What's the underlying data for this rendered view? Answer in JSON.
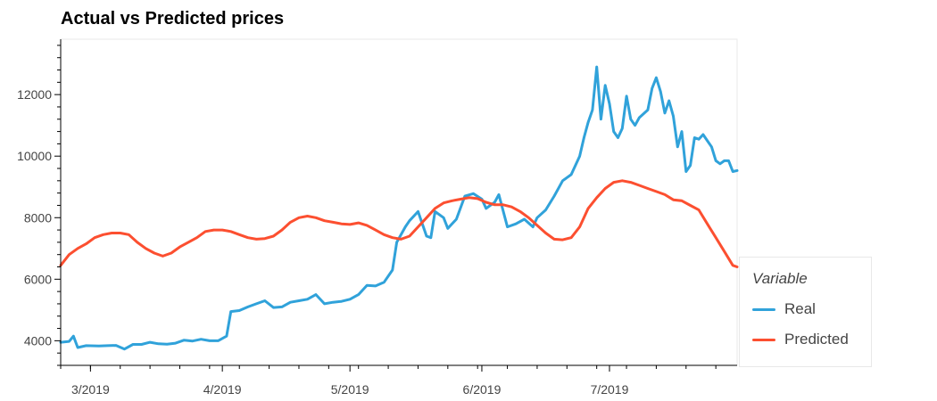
{
  "chart_data": {
    "type": "line",
    "title": "Actual vs Predicted prices",
    "xlabel": "",
    "ylabel": "",
    "xlim": [
      "2019-02-22",
      "2019-07-31"
    ],
    "ylim": [
      3200,
      13800
    ],
    "x_ticks": [
      "3/2019",
      "4/2019",
      "5/2019",
      "6/2019",
      "7/2019"
    ],
    "y_ticks": [
      4000,
      6000,
      8000,
      10000,
      12000
    ],
    "grid": false,
    "legend": {
      "title": "Variable",
      "placement": "right",
      "entries": [
        "Real",
        "Predicted"
      ]
    },
    "series": [
      {
        "name": "Real",
        "color": "#30a2da",
        "points": [
          [
            "2019-02-22",
            3950
          ],
          [
            "2019-02-24",
            3980
          ],
          [
            "2019-02-25",
            4150
          ],
          [
            "2019-02-26",
            3780
          ],
          [
            "2019-02-28",
            3840
          ],
          [
            "2019-03-03",
            3830
          ],
          [
            "2019-03-05",
            3840
          ],
          [
            "2019-03-07",
            3850
          ],
          [
            "2019-03-09",
            3730
          ],
          [
            "2019-03-11",
            3880
          ],
          [
            "2019-03-13",
            3880
          ],
          [
            "2019-03-15",
            3950
          ],
          [
            "2019-03-17",
            3900
          ],
          [
            "2019-03-19",
            3890
          ],
          [
            "2019-03-21",
            3920
          ],
          [
            "2019-03-23",
            4020
          ],
          [
            "2019-03-25",
            3990
          ],
          [
            "2019-03-27",
            4050
          ],
          [
            "2019-03-29",
            4000
          ],
          [
            "2019-03-31",
            4000
          ],
          [
            "2019-04-02",
            4150
          ],
          [
            "2019-04-03",
            4950
          ],
          [
            "2019-04-05",
            4980
          ],
          [
            "2019-04-07",
            5100
          ],
          [
            "2019-04-09",
            5200
          ],
          [
            "2019-04-11",
            5300
          ],
          [
            "2019-04-13",
            5080
          ],
          [
            "2019-04-15",
            5100
          ],
          [
            "2019-04-17",
            5250
          ],
          [
            "2019-04-19",
            5300
          ],
          [
            "2019-04-21",
            5350
          ],
          [
            "2019-04-23",
            5500
          ],
          [
            "2019-04-25",
            5200
          ],
          [
            "2019-04-27",
            5250
          ],
          [
            "2019-04-29",
            5280
          ],
          [
            "2019-05-01",
            5350
          ],
          [
            "2019-05-03",
            5500
          ],
          [
            "2019-05-05",
            5800
          ],
          [
            "2019-05-07",
            5780
          ],
          [
            "2019-05-09",
            5900
          ],
          [
            "2019-05-11",
            6300
          ],
          [
            "2019-05-12",
            7200
          ],
          [
            "2019-05-14",
            7700
          ],
          [
            "2019-05-15",
            7900
          ],
          [
            "2019-05-17",
            8200
          ],
          [
            "2019-05-19",
            7400
          ],
          [
            "2019-05-20",
            7350
          ],
          [
            "2019-05-21",
            8200
          ],
          [
            "2019-05-23",
            8000
          ],
          [
            "2019-05-24",
            7650
          ],
          [
            "2019-05-26",
            7950
          ],
          [
            "2019-05-28",
            8700
          ],
          [
            "2019-05-30",
            8780
          ],
          [
            "2019-06-01",
            8600
          ],
          [
            "2019-06-02",
            8300
          ],
          [
            "2019-06-04",
            8500
          ],
          [
            "2019-06-05",
            8750
          ],
          [
            "2019-06-07",
            7700
          ],
          [
            "2019-06-09",
            7800
          ],
          [
            "2019-06-11",
            7950
          ],
          [
            "2019-06-13",
            7700
          ],
          [
            "2019-06-14",
            8000
          ],
          [
            "2019-06-16",
            8250
          ],
          [
            "2019-06-18",
            8700
          ],
          [
            "2019-06-20",
            9200
          ],
          [
            "2019-06-22",
            9400
          ],
          [
            "2019-06-24",
            10000
          ],
          [
            "2019-06-25",
            10600
          ],
          [
            "2019-06-26",
            11100
          ],
          [
            "2019-06-27",
            11500
          ],
          [
            "2019-06-28",
            12900
          ],
          [
            "2019-06-29",
            11200
          ],
          [
            "2019-06-30",
            12300
          ],
          [
            "2019-07-01",
            11700
          ],
          [
            "2019-07-02",
            10800
          ],
          [
            "2019-07-03",
            10600
          ],
          [
            "2019-07-04",
            10900
          ],
          [
            "2019-07-05",
            11950
          ],
          [
            "2019-07-06",
            11200
          ],
          [
            "2019-07-07",
            11000
          ],
          [
            "2019-07-08",
            11250
          ],
          [
            "2019-07-10",
            11500
          ],
          [
            "2019-07-11",
            12200
          ],
          [
            "2019-07-12",
            12550
          ],
          [
            "2019-07-13",
            12100
          ],
          [
            "2019-07-14",
            11400
          ],
          [
            "2019-07-15",
            11800
          ],
          [
            "2019-07-16",
            11300
          ],
          [
            "2019-07-17",
            10300
          ],
          [
            "2019-07-18",
            10800
          ],
          [
            "2019-07-19",
            9500
          ],
          [
            "2019-07-20",
            9700
          ],
          [
            "2019-07-21",
            10600
          ],
          [
            "2019-07-22",
            10550
          ],
          [
            "2019-07-23",
            10700
          ],
          [
            "2019-07-24",
            10500
          ],
          [
            "2019-07-25",
            10300
          ],
          [
            "2019-07-26",
            9850
          ],
          [
            "2019-07-27",
            9750
          ],
          [
            "2019-07-28",
            9850
          ],
          [
            "2019-07-29",
            9850
          ],
          [
            "2019-07-30",
            9500
          ],
          [
            "2019-07-31",
            9530
          ]
        ]
      },
      {
        "name": "Predicted",
        "color": "#fc4f30",
        "points": [
          [
            "2019-02-22",
            6450
          ],
          [
            "2019-02-24",
            6800
          ],
          [
            "2019-02-26",
            7000
          ],
          [
            "2019-02-28",
            7150
          ],
          [
            "2019-03-02",
            7350
          ],
          [
            "2019-03-04",
            7450
          ],
          [
            "2019-03-06",
            7500
          ],
          [
            "2019-03-08",
            7500
          ],
          [
            "2019-03-10",
            7450
          ],
          [
            "2019-03-12",
            7200
          ],
          [
            "2019-03-14",
            7000
          ],
          [
            "2019-03-16",
            6850
          ],
          [
            "2019-03-18",
            6750
          ],
          [
            "2019-03-20",
            6850
          ],
          [
            "2019-03-22",
            7050
          ],
          [
            "2019-03-24",
            7200
          ],
          [
            "2019-03-26",
            7350
          ],
          [
            "2019-03-28",
            7550
          ],
          [
            "2019-03-30",
            7600
          ],
          [
            "2019-04-01",
            7600
          ],
          [
            "2019-04-03",
            7550
          ],
          [
            "2019-04-05",
            7450
          ],
          [
            "2019-04-07",
            7350
          ],
          [
            "2019-04-09",
            7300
          ],
          [
            "2019-04-11",
            7320
          ],
          [
            "2019-04-13",
            7400
          ],
          [
            "2019-04-15",
            7600
          ],
          [
            "2019-04-17",
            7850
          ],
          [
            "2019-04-19",
            8000
          ],
          [
            "2019-04-21",
            8050
          ],
          [
            "2019-04-23",
            8000
          ],
          [
            "2019-04-25",
            7900
          ],
          [
            "2019-04-27",
            7850
          ],
          [
            "2019-04-29",
            7800
          ],
          [
            "2019-05-01",
            7780
          ],
          [
            "2019-05-03",
            7830
          ],
          [
            "2019-05-05",
            7750
          ],
          [
            "2019-05-07",
            7600
          ],
          [
            "2019-05-09",
            7450
          ],
          [
            "2019-05-11",
            7350
          ],
          [
            "2019-05-13",
            7300
          ],
          [
            "2019-05-15",
            7400
          ],
          [
            "2019-05-17",
            7700
          ],
          [
            "2019-05-19",
            8000
          ],
          [
            "2019-05-21",
            8300
          ],
          [
            "2019-05-23",
            8480
          ],
          [
            "2019-05-25",
            8550
          ],
          [
            "2019-05-27",
            8600
          ],
          [
            "2019-05-29",
            8650
          ],
          [
            "2019-05-31",
            8620
          ],
          [
            "2019-06-02",
            8500
          ],
          [
            "2019-06-04",
            8420
          ],
          [
            "2019-06-06",
            8420
          ],
          [
            "2019-06-08",
            8350
          ],
          [
            "2019-06-10",
            8200
          ],
          [
            "2019-06-12",
            8000
          ],
          [
            "2019-06-14",
            7750
          ],
          [
            "2019-06-16",
            7500
          ],
          [
            "2019-06-18",
            7300
          ],
          [
            "2019-06-20",
            7280
          ],
          [
            "2019-06-22",
            7350
          ],
          [
            "2019-06-24",
            7700
          ],
          [
            "2019-06-26",
            8300
          ],
          [
            "2019-06-28",
            8650
          ],
          [
            "2019-06-30",
            8950
          ],
          [
            "2019-07-02",
            9150
          ],
          [
            "2019-07-04",
            9200
          ],
          [
            "2019-07-06",
            9150
          ],
          [
            "2019-07-08",
            9050
          ],
          [
            "2019-07-10",
            8950
          ],
          [
            "2019-07-12",
            8850
          ],
          [
            "2019-07-14",
            8750
          ],
          [
            "2019-07-16",
            8580
          ],
          [
            "2019-07-18",
            8550
          ],
          [
            "2019-07-20",
            8400
          ],
          [
            "2019-07-22",
            8250
          ],
          [
            "2019-07-24",
            7800
          ],
          [
            "2019-07-26",
            7350
          ],
          [
            "2019-07-28",
            6900
          ],
          [
            "2019-07-30",
            6450
          ],
          [
            "2019-07-31",
            6400
          ]
        ]
      }
    ]
  }
}
